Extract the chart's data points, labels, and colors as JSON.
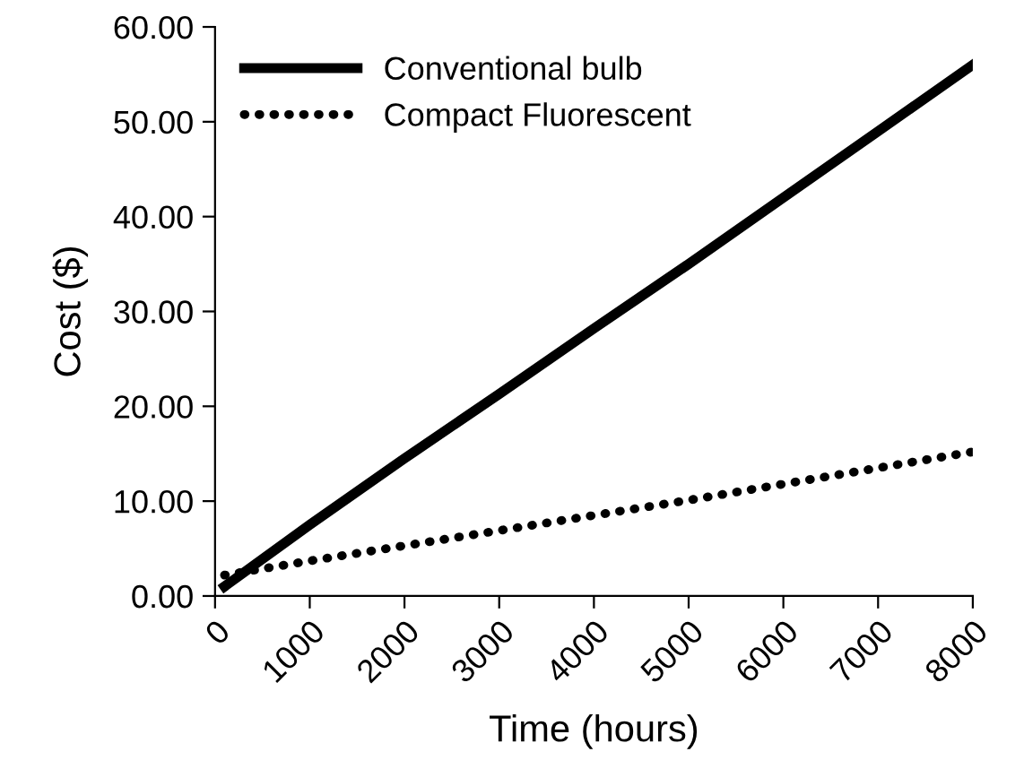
{
  "chart_data": {
    "type": "line",
    "xlabel": "Time (hours)",
    "ylabel": "Cost ($)",
    "x": [
      100,
      1000,
      2000,
      3000,
      4000,
      5000,
      6000,
      7000,
      8000
    ],
    "series": [
      {
        "name": "Conventional bulb",
        "color": "#000000",
        "line_style": "solid",
        "values": [
          1.0,
          7.5,
          14.5,
          21.3,
          28.2,
          35.0,
          42.0,
          49.0,
          56.0
        ]
      },
      {
        "name": "Compact Fluorescent",
        "color": "#000000",
        "line_style": "dotted",
        "values": [
          2.2,
          3.7,
          5.3,
          6.9,
          8.5,
          10.1,
          11.8,
          13.5,
          15.2
        ]
      }
    ],
    "xlim": [
      0,
      8000
    ],
    "ylim": [
      0,
      60
    ],
    "xticks": [
      0,
      1000,
      2000,
      3000,
      4000,
      5000,
      6000,
      7000,
      8000
    ],
    "yticks": [
      {
        "value": 0,
        "label": "0.00"
      },
      {
        "value": 10,
        "label": "10.00"
      },
      {
        "value": 20,
        "label": "20.00"
      },
      {
        "value": 30,
        "label": "30.00"
      },
      {
        "value": 40,
        "label": "40.00"
      },
      {
        "value": 50,
        "label": "50.00"
      },
      {
        "value": 60,
        "label": "60.00"
      }
    ],
    "grid": false,
    "legend": "top left",
    "marker": "none"
  }
}
